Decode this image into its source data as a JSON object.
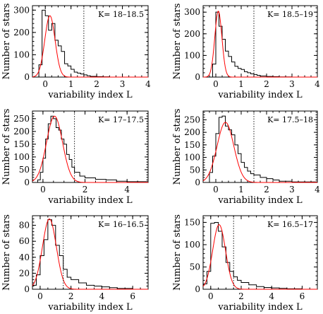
{
  "chart_data": [
    {
      "type": "histogram",
      "label": "K= 18–18.5",
      "xlabel": "variability index L",
      "ylabel": "Number of stars",
      "xlim": [
        -0.5,
        4
      ],
      "ylim": [
        0,
        320
      ],
      "xticks": [
        0,
        1,
        2,
        3,
        4
      ],
      "yticks": [
        0,
        100,
        200,
        300
      ],
      "cutoff": 1.5,
      "bin_edges": [
        -0.5,
        -0.25,
        -0.125,
        0,
        0.125,
        0.25,
        0.375,
        0.5,
        0.625,
        0.75,
        0.875,
        1.0,
        1.125,
        1.25,
        1.375,
        1.5,
        1.625,
        1.75,
        2.0,
        2.25,
        2.5,
        4.0
      ],
      "counts": [
        0,
        55,
        300,
        275,
        210,
        240,
        165,
        140,
        115,
        60,
        50,
        35,
        22,
        18,
        14,
        10,
        6,
        3,
        2,
        1,
        0
      ],
      "fit": {
        "mu": 0.18,
        "sigma": 0.2,
        "peak": 275
      }
    },
    {
      "type": "histogram",
      "label": "K= 18.5–19",
      "xlabel": "variability index L",
      "ylabel": "Number of stars",
      "xlim": [
        -0.5,
        4
      ],
      "ylim": [
        0,
        330
      ],
      "xticks": [
        0,
        1,
        2,
        3,
        4
      ],
      "yticks": [
        0,
        100,
        200,
        300
      ],
      "cutoff": 1.5,
      "bin_edges": [
        -0.5,
        -0.125,
        0,
        0.125,
        0.25,
        0.375,
        0.5,
        0.625,
        0.75,
        0.875,
        1.0,
        1.125,
        1.25,
        1.375,
        1.5,
        1.625,
        1.75,
        2.0,
        2.25,
        2.5,
        3.0,
        4.0
      ],
      "counts": [
        0,
        60,
        300,
        235,
        175,
        120,
        95,
        70,
        50,
        40,
        35,
        25,
        20,
        15,
        12,
        8,
        5,
        3,
        2,
        1,
        0
      ],
      "fit": {
        "mu": 0.1,
        "sigma": 0.14,
        "peak": 305
      }
    },
    {
      "type": "histogram",
      "label": "K= 17–17.5",
      "xlabel": "variability index L",
      "ylabel": "Number of stars",
      "xlim": [
        -0.5,
        5
      ],
      "ylim": [
        0,
        280
      ],
      "xticks": [
        0,
        2,
        4
      ],
      "yticks": [
        0,
        50,
        100,
        150,
        200,
        250
      ],
      "cutoff": 1.5,
      "bin_edges": [
        -0.5,
        -0.25,
        -0.125,
        0,
        0.125,
        0.25,
        0.375,
        0.5,
        0.625,
        0.75,
        0.875,
        1.0,
        1.125,
        1.25,
        1.375,
        1.5,
        1.75,
        2.0,
        2.5,
        3.0,
        3.5,
        4.0,
        5.0
      ],
      "counts": [
        0,
        10,
        40,
        95,
        170,
        230,
        260,
        250,
        215,
        205,
        170,
        150,
        110,
        90,
        60,
        40,
        25,
        18,
        12,
        10,
        5,
        3
      ],
      "fit": {
        "mu": 0.55,
        "sigma": 0.38,
        "peak": 260
      }
    },
    {
      "type": "histogram",
      "label": "K= 17.5–18",
      "xlabel": "variability index L",
      "ylabel": "Number of stars",
      "xlim": [
        -0.5,
        4
      ],
      "ylim": [
        0,
        285
      ],
      "xticks": [
        0,
        1,
        2,
        3,
        4
      ],
      "yticks": [
        0,
        50,
        100,
        150,
        200,
        250
      ],
      "cutoff": 1.5,
      "bin_edges": [
        -0.5,
        -0.25,
        -0.125,
        0,
        0.125,
        0.25,
        0.375,
        0.5,
        0.625,
        0.75,
        0.875,
        1.0,
        1.125,
        1.25,
        1.375,
        1.5,
        1.75,
        2.0,
        2.25,
        2.5,
        3.0,
        4.0
      ],
      "counts": [
        0,
        40,
        105,
        195,
        260,
        265,
        225,
        210,
        190,
        150,
        115,
        80,
        60,
        45,
        35,
        30,
        20,
        15,
        10,
        5,
        2
      ],
      "fit": {
        "mu": 0.38,
        "sigma": 0.33,
        "peak": 240
      }
    },
    {
      "type": "histogram",
      "label": "K= 16–16.5",
      "xlabel": "variability index L",
      "ylabel": "Number of stars",
      "xlim": [
        -0.5,
        7
      ],
      "ylim": [
        0,
        92
      ],
      "xticks": [
        0,
        2,
        4,
        6
      ],
      "yticks": [
        0,
        20,
        40,
        60,
        80
      ],
      "cutoff": 1.5,
      "bin_edges": [
        -0.5,
        -0.25,
        0,
        0.25,
        0.5,
        0.75,
        1.0,
        1.25,
        1.5,
        1.75,
        2.0,
        2.5,
        3.0,
        3.5,
        4.0,
        4.5,
        5.0,
        6.0,
        7.0
      ],
      "counts": [
        5,
        18,
        42,
        62,
        87,
        80,
        55,
        42,
        25,
        15,
        12,
        8,
        5,
        4,
        3,
        2,
        1,
        0
      ],
      "fit": {
        "mu": 0.6,
        "sigma": 0.45,
        "peak": 88
      }
    },
    {
      "type": "histogram",
      "label": "K= 16.5–17",
      "xlabel": "variability index L",
      "ylabel": "Number of stars",
      "xlim": [
        -0.5,
        7
      ],
      "ylim": [
        0,
        165
      ],
      "xticks": [
        0,
        2,
        4,
        6
      ],
      "yticks": [
        0,
        50,
        100,
        150
      ],
      "cutoff": 1.5,
      "bin_edges": [
        -0.5,
        -0.25,
        0,
        0.25,
        0.5,
        0.75,
        1.0,
        1.25,
        1.5,
        1.75,
        2.0,
        2.5,
        3.0,
        3.5,
        4.0,
        4.5,
        5.0,
        6.0,
        7.0
      ],
      "counts": [
        12,
        40,
        148,
        150,
        130,
        95,
        60,
        40,
        28,
        20,
        15,
        10,
        6,
        4,
        3,
        2,
        1,
        0
      ],
      "fit": {
        "mu": 0.55,
        "sigma": 0.42,
        "peak": 145
      }
    }
  ]
}
